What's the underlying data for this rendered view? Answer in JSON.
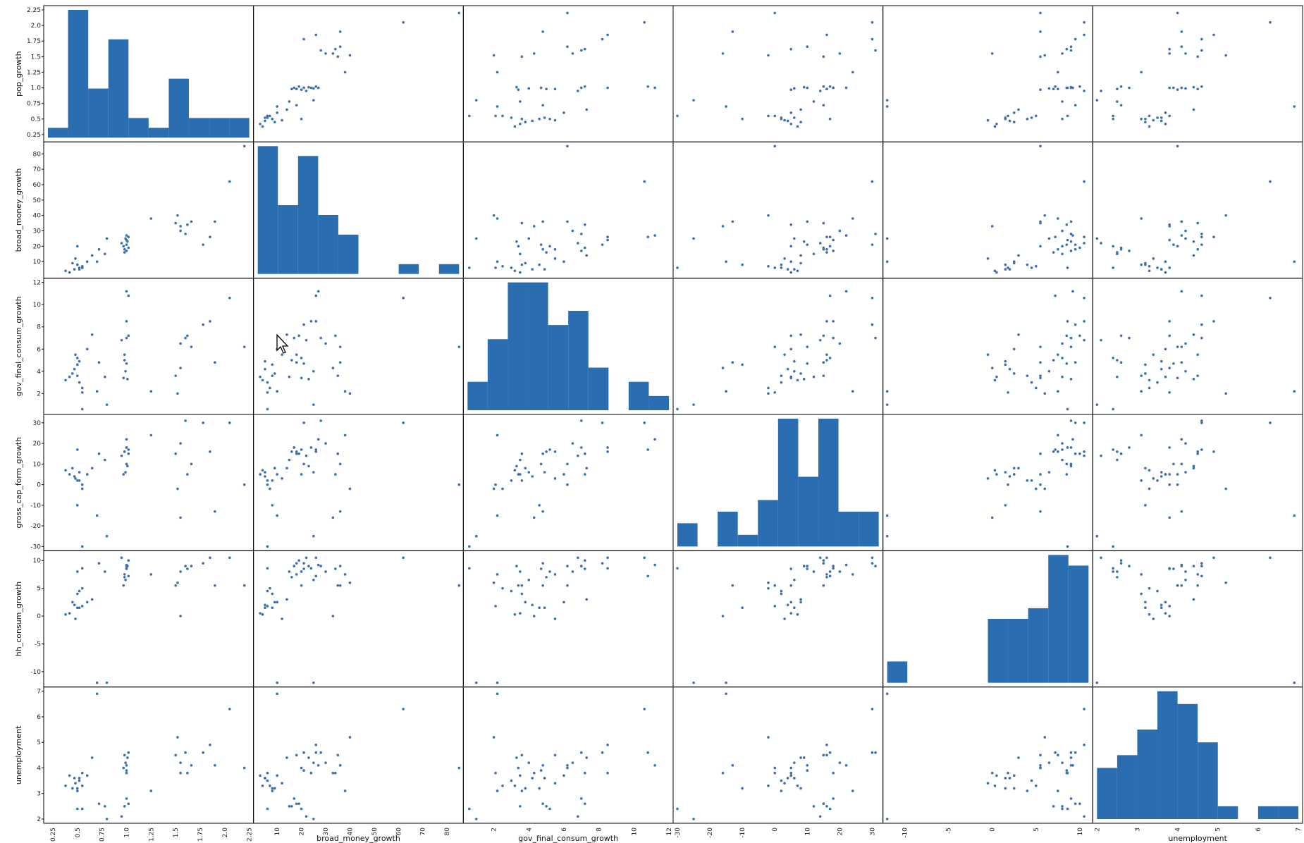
{
  "chart_data": {
    "type": "scatter_matrix",
    "title": "",
    "color": "#2a6db0",
    "point_color": "#3b6fb0",
    "variables": [
      {
        "name": "pop_growth",
        "lim": [
          0.2,
          2.25
        ],
        "ticks": [
          "0.25",
          "0.5",
          "0.75",
          "1.0",
          "1.25",
          "1.5",
          "1.75",
          "2.0",
          "2.25"
        ],
        "tickvals": [
          0.25,
          0.5,
          0.75,
          1.0,
          1.25,
          1.5,
          1.75,
          2.0,
          2.25
        ],
        "values": [
          0.42,
          0.47,
          0.52,
          0.55,
          0.5,
          0.6,
          0.48,
          0.52,
          0.38,
          0.45,
          0.5,
          0.55,
          0.78,
          0.72,
          0.5,
          0.98,
          1.0,
          1.02,
          0.95,
          1.0,
          0.98,
          1.01,
          0.99,
          0.97,
          1.0,
          1.0,
          1.02,
          0.7,
          1.55,
          1.6,
          1.5,
          1.52,
          1.55,
          1.62,
          1.66,
          1.78,
          1.85,
          1.9,
          2.05,
          2.2,
          0.8,
          0.55,
          1.25,
          0.65
        ]
      },
      {
        "name": "broad_money_growth",
        "lim": [
          2,
          85
        ],
        "ticks": [
          "10",
          "20",
          "30",
          "40",
          "50",
          "60",
          "70",
          "80"
        ],
        "tickvals": [
          10,
          20,
          30,
          40,
          50,
          60,
          70,
          80
        ],
        "values": [
          3,
          5,
          6,
          7,
          8,
          10,
          12,
          5,
          4,
          9,
          8,
          6,
          15,
          18,
          20,
          16,
          17,
          19,
          22,
          21,
          18,
          23,
          25,
          20,
          24,
          27,
          26,
          10,
          30,
          28,
          35,
          40,
          33,
          34,
          36,
          21,
          26,
          36,
          62,
          85,
          25,
          6,
          38,
          14
        ]
      },
      {
        "name": "gov_final_consum_growth",
        "lim": [
          0.5,
          12
        ],
        "ticks": [
          "2",
          "4",
          "6",
          "8",
          "10",
          "12"
        ],
        "tickvals": [
          2,
          4,
          6,
          8,
          10,
          12
        ],
        "values": [
          3.5,
          4.2,
          3.0,
          2.5,
          4.6,
          6.0,
          5.5,
          4.9,
          3.2,
          3.8,
          3.6,
          2.1,
          3.5,
          4.8,
          5.2,
          5.0,
          7.0,
          7.2,
          6.8,
          4.7,
          5.5,
          3.3,
          4.0,
          3.4,
          8.5,
          11.2,
          10.8,
          2.2,
          6.5,
          7.0,
          3.6,
          2.0,
          4.3,
          7.2,
          6.2,
          8.2,
          8.5,
          4.8,
          10.6,
          6.2,
          1.0,
          0.6,
          2.2,
          7.3
        ]
      },
      {
        "name": "gross_cap_form_growth",
        "lim": [
          -30,
          32
        ],
        "ticks": [
          "-30",
          "-20",
          "-10",
          "0",
          "10",
          "20",
          "30"
        ],
        "tickvals": [
          -30,
          -20,
          -10,
          0,
          10,
          20,
          30
        ],
        "values": [
          5,
          4,
          2,
          -2,
          -10,
          5,
          3,
          6,
          7,
          8,
          2,
          0,
          12,
          15,
          17,
          16,
          18,
          15,
          14,
          10,
          16,
          9,
          6,
          5,
          18,
          22,
          17,
          -15,
          20,
          31,
          15,
          -2,
          -16,
          5,
          10,
          30,
          16,
          -13,
          30,
          0,
          -25,
          -30,
          24,
          8
        ]
      },
      {
        "name": "hh_consum_growth",
        "lim": [
          -12,
          11
        ],
        "ticks": [
          "-10",
          "-5",
          "0",
          "5",
          "10"
        ],
        "tickvals": [
          -10,
          -5,
          0,
          5,
          10
        ],
        "values": [
          0.5,
          2,
          4.5,
          5,
          1.5,
          2.5,
          -0.5,
          1.5,
          0.3,
          2.5,
          4,
          1.8,
          8,
          9.5,
          8,
          7,
          9,
          10,
          10.5,
          8.5,
          7.5,
          9,
          6.5,
          5.5,
          8.6,
          9.2,
          7.2,
          -12,
          8,
          9,
          5.5,
          6,
          0,
          8.5,
          9,
          9.5,
          10.5,
          5.5,
          10.5,
          5.5,
          -12,
          8.6,
          7.5,
          3
        ]
      },
      {
        "name": "unemployment",
        "lim": [
          2,
          7
        ],
        "ticks": [
          "2",
          "3",
          "4",
          "5",
          "6",
          "7"
        ],
        "tickvals": [
          2,
          3,
          4,
          5,
          6,
          7
        ],
        "values": [
          3.7,
          3.6,
          3.5,
          3.3,
          3.2,
          3.7,
          3.4,
          3.6,
          3.3,
          3.2,
          3.1,
          3.8,
          2.5,
          2.6,
          2.4,
          2.5,
          2.8,
          2.6,
          2.1,
          3.9,
          4.5,
          4.4,
          4.2,
          4.0,
          3.8,
          4.1,
          4.6,
          6.9,
          4.2,
          4.6,
          4.5,
          5.2,
          3.8,
          3.8,
          4.1,
          4.6,
          4.9,
          4.1,
          6.3,
          4.0,
          2.0,
          2.4,
          3.1,
          4.4
        ]
      }
    ],
    "histogram_bins": 10,
    "diagonal": "hist",
    "visible_bottom_labels": [
      "broad_money_growth",
      "gov_final_consum_growth",
      "unemployment"
    ]
  },
  "cursor_icon": "mouse-pointer-icon"
}
